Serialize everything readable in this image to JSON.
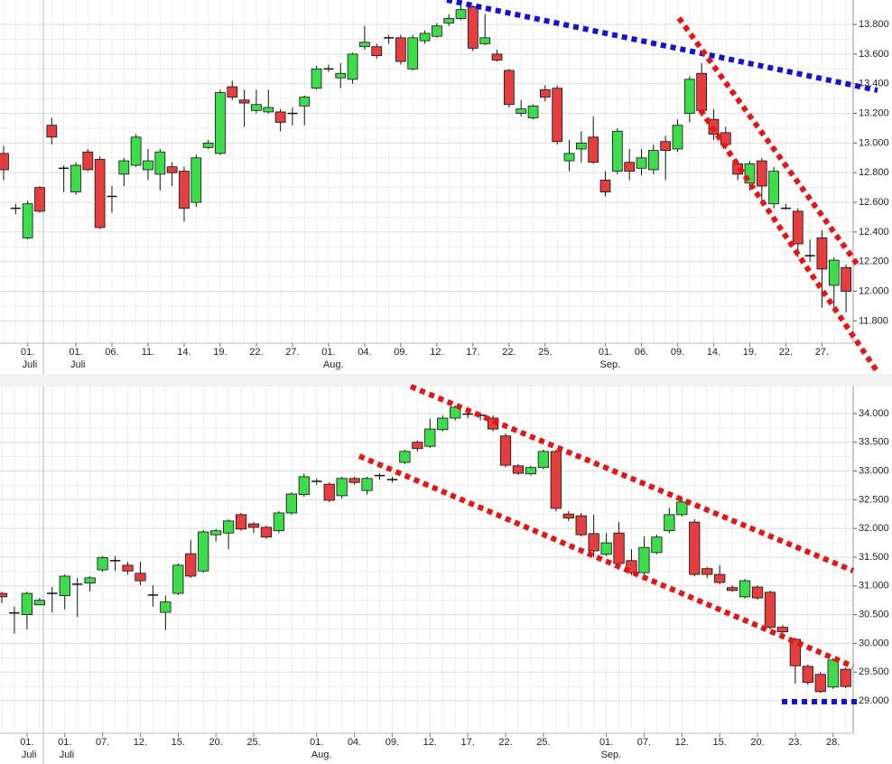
{
  "chart_data": [
    {
      "type": "candlestick",
      "categories": [
        null,
        null,
        "01.",
        null,
        null,
        null,
        "01.",
        null,
        null,
        "06.",
        null,
        null,
        "11.",
        null,
        null,
        "14.",
        null,
        null,
        "19.",
        null,
        null,
        "22.",
        null,
        null,
        "27.",
        null,
        null,
        "01.",
        null,
        null,
        "04.",
        null,
        null,
        "09.",
        null,
        null,
        "12.",
        null,
        null,
        "17.",
        null,
        null,
        "22.",
        null,
        null,
        "25.",
        null,
        null,
        null,
        null,
        "01.",
        null,
        null,
        "06.",
        null,
        null,
        "09.",
        null,
        null,
        "14.",
        null,
        null,
        "19.",
        null,
        null,
        "22.",
        null,
        null,
        "27.",
        null,
        null
      ],
      "months": [
        null,
        null,
        "Juli",
        null,
        null,
        null,
        "Juli",
        null,
        null,
        null,
        null,
        null,
        null,
        null,
        null,
        null,
        null,
        null,
        null,
        null,
        null,
        null,
        null,
        null,
        null,
        null,
        null,
        "Aug.",
        null,
        null,
        null,
        null,
        null,
        null,
        null,
        null,
        null,
        null,
        null,
        null,
        null,
        null,
        null,
        null,
        null,
        null,
        null,
        null,
        null,
        null,
        "Sep.",
        null,
        null,
        null,
        null,
        null,
        null,
        null,
        null,
        null,
        null,
        null,
        null,
        null,
        null,
        null,
        null,
        null,
        null,
        null,
        null
      ],
      "open": [
        12930,
        12560,
        12360,
        12700,
        13120,
        12830,
        12670,
        12940,
        12890,
        12640,
        12790,
        12850,
        12820,
        12790,
        12840,
        12810,
        12600,
        12970,
        12930,
        13380,
        13290,
        13220,
        13210,
        13210,
        13200,
        13250,
        13370,
        13500,
        13440,
        13430,
        13650,
        13650,
        13710,
        13710,
        13500,
        13690,
        13720,
        13810,
        13840,
        13920,
        13670,
        13600,
        13490,
        13200,
        13170,
        13360,
        13370,
        12880,
        12960,
        13040,
        12750,
        12810,
        12870,
        12830,
        12820,
        13010,
        12960,
        13200,
        13470,
        13160,
        13070,
        12860,
        12730,
        12880,
        12590,
        12560,
        12540,
        12240,
        12360,
        12040,
        12160
      ],
      "high": [
        12980,
        12590,
        12610,
        12710,
        13170,
        12850,
        12870,
        12960,
        12910,
        12710,
        12900,
        13060,
        12960,
        12960,
        12870,
        12840,
        12920,
        13020,
        13360,
        13420,
        13360,
        13360,
        13360,
        13230,
        13240,
        13320,
        13520,
        13530,
        13540,
        13610,
        13790,
        13670,
        13730,
        13730,
        13730,
        13760,
        13810,
        13870,
        13930,
        13930,
        13870,
        13630,
        13500,
        13290,
        13260,
        13390,
        13390,
        13020,
        13080,
        13180,
        12810,
        13100,
        12960,
        12960,
        12990,
        13050,
        13160,
        13450,
        13540,
        13230,
        13110,
        12880,
        12880,
        12900,
        12840,
        12590,
        12560,
        12350,
        12410,
        12230,
        12180
      ],
      "low": [
        12750,
        12520,
        12350,
        12530,
        12990,
        12670,
        12650,
        12810,
        12420,
        12530,
        12710,
        12840,
        12750,
        12680,
        12710,
        12470,
        12570,
        12960,
        12920,
        13290,
        13110,
        13200,
        13200,
        13080,
        13120,
        13120,
        13360,
        13480,
        13370,
        13400,
        13630,
        13570,
        13670,
        13530,
        13490,
        13670,
        13710,
        13790,
        13830,
        13620,
        13660,
        13550,
        13240,
        13180,
        13160,
        13280,
        12990,
        12810,
        12870,
        12860,
        12640,
        12790,
        12750,
        12780,
        12790,
        12750,
        12940,
        13140,
        13180,
        13020,
        12960,
        12750,
        12680,
        12590,
        12560,
        12550,
        12230,
        12200,
        11890,
        11890,
        11860
      ],
      "close": [
        12820,
        12560,
        12590,
        12540,
        13040,
        12830,
        12850,
        12820,
        12430,
        12640,
        12880,
        13040,
        12880,
        12940,
        12800,
        12560,
        12900,
        13000,
        13340,
        13310,
        13270,
        13260,
        13240,
        13140,
        13200,
        13310,
        13500,
        13500,
        13470,
        13600,
        13680,
        13590,
        13710,
        13550,
        13710,
        13740,
        13790,
        13840,
        13900,
        13640,
        13710,
        13560,
        13260,
        13230,
        13250,
        13310,
        13010,
        12930,
        13000,
        12870,
        12670,
        13080,
        12810,
        12900,
        12950,
        12950,
        13120,
        13430,
        13220,
        13060,
        12990,
        12790,
        12860,
        12710,
        12810,
        12560,
        12320,
        12240,
        12150,
        12210,
        12000
      ],
      "up_color": "#3ddc4a",
      "down_color": "#e53e3e",
      "grid": true,
      "ylim": [
        11650,
        13965
      ],
      "yticks": [
        {
          "value": 11800,
          "label": "11.800"
        },
        {
          "value": 12000,
          "label": "12.000"
        },
        {
          "value": 12200,
          "label": "12.200"
        },
        {
          "value": 12400,
          "label": "12.400"
        },
        {
          "value": 12600,
          "label": "12.600"
        },
        {
          "value": 12800,
          "label": "12.800"
        },
        {
          "value": 13000,
          "label": "13.000"
        },
        {
          "value": 13200,
          "label": "13.200"
        },
        {
          "value": 13400,
          "label": "13.400"
        },
        {
          "value": 13600,
          "label": "13.600"
        },
        {
          "value": 13800,
          "label": "13.800"
        }
      ]
    },
    {
      "type": "candlestick",
      "categories": [
        null,
        null,
        "01.",
        null,
        null,
        "01.",
        null,
        null,
        "07.",
        null,
        null,
        "12.",
        null,
        null,
        "15.",
        null,
        null,
        "20.",
        null,
        null,
        "25.",
        null,
        null,
        null,
        null,
        "01.",
        null,
        null,
        "04.",
        null,
        null,
        "09.",
        null,
        null,
        "12.",
        null,
        null,
        "17.",
        null,
        null,
        "22.",
        null,
        null,
        "25.",
        null,
        null,
        null,
        null,
        "01.",
        null,
        null,
        "07.",
        null,
        null,
        "12.",
        null,
        null,
        "15.",
        null,
        null,
        "20.",
        null,
        null,
        "23.",
        null,
        null,
        "28.",
        null
      ],
      "months": [
        null,
        null,
        "Juli",
        null,
        null,
        "Juli",
        null,
        null,
        null,
        null,
        null,
        null,
        null,
        null,
        null,
        null,
        null,
        null,
        null,
        null,
        null,
        null,
        null,
        null,
        null,
        "Aug.",
        null,
        null,
        null,
        null,
        null,
        null,
        null,
        null,
        null,
        null,
        null,
        null,
        null,
        null,
        null,
        null,
        null,
        null,
        null,
        null,
        null,
        null,
        "Sep.",
        null,
        null,
        null,
        null,
        null,
        null,
        null,
        null,
        null,
        null,
        null,
        null,
        null,
        null,
        null,
        null,
        null,
        null,
        null
      ],
      "open": [
        30870,
        30530,
        30500,
        30670,
        30870,
        30830,
        31030,
        31050,
        31280,
        31440,
        31360,
        31220,
        30840,
        30540,
        30870,
        31560,
        31260,
        31890,
        31920,
        32240,
        32080,
        32020,
        31960,
        32270,
        32590,
        32820,
        32770,
        32570,
        32870,
        32660,
        32920,
        32850,
        33150,
        33500,
        33430,
        33720,
        33920,
        33990,
        33970,
        33920,
        33610,
        33090,
        32950,
        33060,
        33340,
        32250,
        32220,
        31910,
        31550,
        31920,
        31440,
        31230,
        31580,
        31960,
        32240,
        32110,
        31300,
        31200,
        30970,
        30810,
        30980,
        30890,
        30280,
        30070,
        29600,
        29460,
        29240,
        29550
      ],
      "high": [
        30900,
        30640,
        30900,
        30790,
        30980,
        31200,
        31140,
        31170,
        31520,
        31520,
        31420,
        31420,
        31010,
        30830,
        31390,
        31800,
        31970,
        31990,
        32160,
        32270,
        32110,
        32050,
        32300,
        32630,
        32950,
        32870,
        32800,
        32900,
        32900,
        32900,
        32960,
        32900,
        33370,
        33530,
        33910,
        33970,
        34140,
        34030,
        34020,
        33970,
        33650,
        33120,
        33090,
        33370,
        33370,
        32300,
        32270,
        32240,
        31920,
        32110,
        31640,
        31860,
        31890,
        32360,
        32550,
        32160,
        31330,
        31360,
        31010,
        31120,
        31010,
        30920,
        30320,
        30100,
        29630,
        29500,
        29740,
        29580
      ],
      "low": [
        30700,
        30170,
        30240,
        30670,
        30540,
        30590,
        30460,
        30900,
        31250,
        31260,
        31200,
        31010,
        30640,
        30230,
        30840,
        31140,
        31230,
        31770,
        31640,
        31960,
        31920,
        31820,
        31920,
        32240,
        32550,
        32760,
        32460,
        32520,
        32760,
        32590,
        32850,
        32800,
        33120,
        33340,
        33400,
        33690,
        33880,
        33920,
        33880,
        33690,
        33070,
        32930,
        32920,
        33030,
        32300,
        32130,
        31860,
        31500,
        31520,
        31360,
        31190,
        31190,
        31550,
        31920,
        32210,
        31170,
        31140,
        31030,
        30900,
        30780,
        30760,
        30240,
        30170,
        29300,
        29280,
        29140,
        29210,
        29220
      ],
      "close": [
        30810,
        30530,
        30870,
        30750,
        30870,
        31170,
        31030,
        31140,
        31490,
        31440,
        31260,
        31090,
        30840,
        30720,
        31360,
        31170,
        31940,
        31960,
        32130,
        31990,
        32020,
        31850,
        32270,
        32600,
        32900,
        32820,
        32490,
        32870,
        32800,
        32870,
        32920,
        32850,
        33340,
        33390,
        33730,
        33920,
        34110,
        33990,
        33970,
        33730,
        33100,
        32960,
        33060,
        33340,
        32350,
        32180,
        31890,
        31610,
        31750,
        31390,
        31230,
        31670,
        31850,
        32240,
        32460,
        31200,
        31200,
        31060,
        30920,
        31090,
        30790,
        30280,
        30200,
        29610,
        29320,
        29160,
        29710,
        29250
      ],
      "up_color": "#3ddc4a",
      "down_color": "#e53e3e",
      "grid": true,
      "ylim": [
        28435,
        34470
      ],
      "yticks": [
        {
          "value": 29000,
          "label": "29.000"
        },
        {
          "value": 29500,
          "label": "29.500"
        },
        {
          "value": 30000,
          "label": "30.000"
        },
        {
          "value": 30500,
          "label": "30.500"
        },
        {
          "value": 31000,
          "label": "31.000"
        },
        {
          "value": 31500,
          "label": "31.500"
        },
        {
          "value": 32000,
          "label": "32.000"
        },
        {
          "value": 32500,
          "label": "32.500"
        },
        {
          "value": 33000,
          "label": "33.000"
        },
        {
          "value": 33500,
          "label": "33.500"
        },
        {
          "value": 34000,
          "label": "34.000"
        }
      ]
    }
  ]
}
